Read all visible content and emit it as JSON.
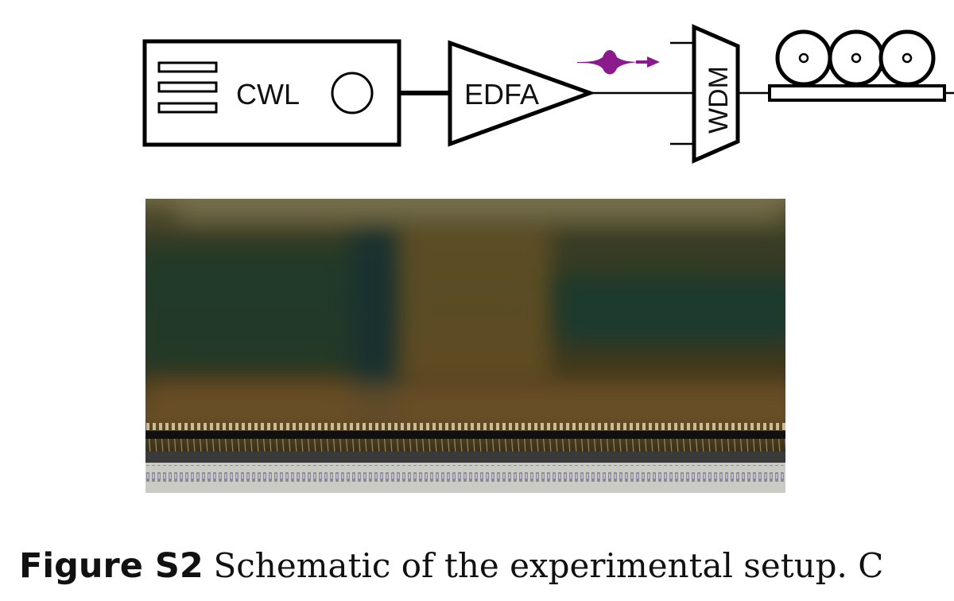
{
  "diagram": {
    "cwl_label": "CWL",
    "edfa_label": "EDFA",
    "wdm_label": "WDM",
    "pulse_color": "#8b1a8c"
  },
  "caption": {
    "figure_label": "Figure S2",
    "text": "Schematic of the experimental setup. C"
  }
}
